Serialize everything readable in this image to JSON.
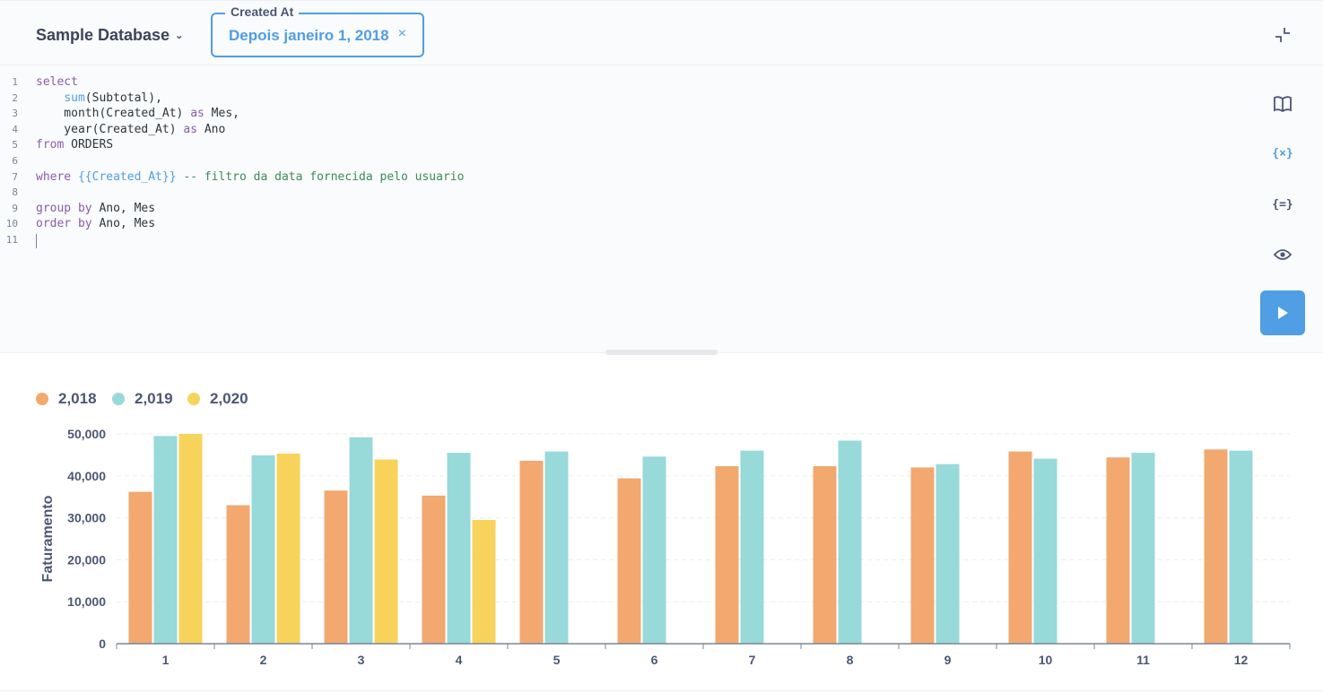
{
  "header": {
    "database": "Sample Database",
    "filter": {
      "label": "Created At",
      "value": "Depois janeiro 1, 2018",
      "clear": "×"
    }
  },
  "editor": {
    "line_numbers": [
      "1",
      "2",
      "3",
      "4",
      "5",
      "6",
      "7",
      "8",
      "9",
      "10",
      "11"
    ],
    "lines": [
      {
        "segments": [
          {
            "c": "kw",
            "t": "select"
          }
        ]
      },
      {
        "segments": [
          {
            "c": "tx",
            "t": "    "
          },
          {
            "c": "fn",
            "t": "sum"
          },
          {
            "c": "tx",
            "t": "(Subtotal),"
          }
        ]
      },
      {
        "segments": [
          {
            "c": "tx",
            "t": "    month(Created_At) "
          },
          {
            "c": "kw",
            "t": "as"
          },
          {
            "c": "tx",
            "t": " Mes,"
          }
        ]
      },
      {
        "segments": [
          {
            "c": "tx",
            "t": "    year(Created_At) "
          },
          {
            "c": "kw",
            "t": "as"
          },
          {
            "c": "tx",
            "t": " Ano"
          }
        ]
      },
      {
        "segments": [
          {
            "c": "kw",
            "t": "from"
          },
          {
            "c": "tx",
            "t": " ORDERS"
          }
        ]
      },
      {
        "segments": []
      },
      {
        "segments": [
          {
            "c": "kw",
            "t": "where"
          },
          {
            "c": "tx",
            "t": " "
          },
          {
            "c": "var",
            "t": "{{Created_At}}"
          },
          {
            "c": "tx",
            "t": " "
          },
          {
            "c": "cm",
            "t": "-- filtro da data fornecida pelo usuario"
          }
        ]
      },
      {
        "segments": []
      },
      {
        "segments": [
          {
            "c": "kw",
            "t": "group by"
          },
          {
            "c": "tx",
            "t": " Ano, Mes"
          }
        ]
      },
      {
        "segments": [
          {
            "c": "kw",
            "t": "order by"
          },
          {
            "c": "tx",
            "t": " Ano, Mes"
          }
        ]
      },
      {
        "segments": []
      }
    ]
  },
  "sidebar": {
    "tools": [
      {
        "icon": "book-icon"
      },
      {
        "icon": "variables-icon",
        "text": "{×}",
        "color": "#509ee3"
      },
      {
        "icon": "snippets-icon",
        "text": "{=}"
      },
      {
        "icon": "eye-icon"
      }
    ],
    "run_icon": "play-icon"
  },
  "colors": {
    "accent": "#509ee3",
    "series": [
      "#f2a86f",
      "#98d9d9",
      "#f7d35b"
    ]
  },
  "chart_data": {
    "type": "bar",
    "ylabel": "Faturamento",
    "xlabel": "",
    "categories": [
      "1",
      "2",
      "3",
      "4",
      "5",
      "6",
      "7",
      "8",
      "9",
      "10",
      "11",
      "12"
    ],
    "yticks": [
      "0",
      "10,000",
      "20,000",
      "30,000",
      "40,000",
      "50,000"
    ],
    "ylim": [
      0,
      50000
    ],
    "grid": true,
    "legend_position": "top-left",
    "series": [
      {
        "name": "2,018",
        "color": "#f2a86f",
        "values": [
          36200,
          33000,
          36500,
          35300,
          43600,
          39400,
          42300,
          42300,
          42000,
          45800,
          44400,
          46300
        ]
      },
      {
        "name": "2,019",
        "color": "#98d9d9",
        "values": [
          49500,
          44900,
          49200,
          45500,
          45800,
          44600,
          46000,
          48400,
          42800,
          44100,
          45500,
          46000
        ]
      },
      {
        "name": "2,020",
        "color": "#f7d35b",
        "values": [
          50000,
          45300,
          43900,
          29500,
          null,
          null,
          null,
          null,
          null,
          null,
          null,
          null
        ]
      }
    ]
  }
}
